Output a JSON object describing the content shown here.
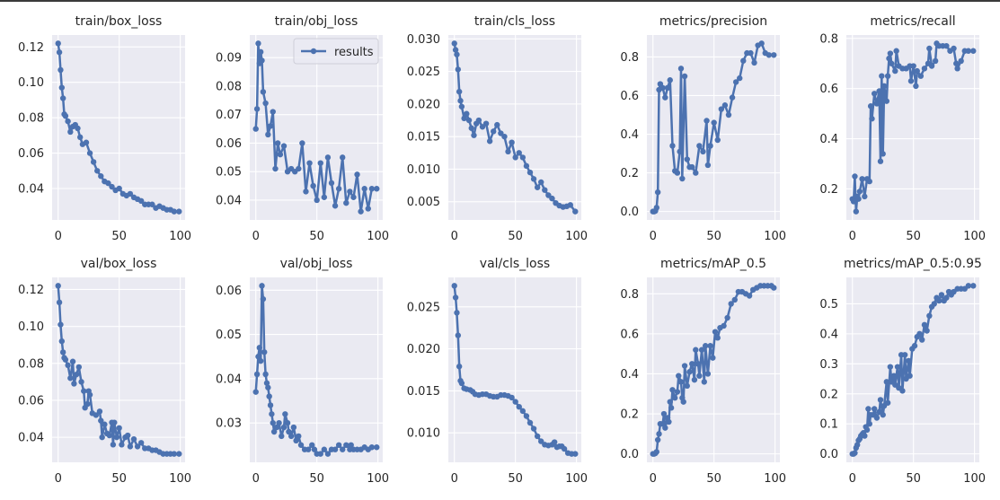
{
  "colors": {
    "background": "#eaeaf2",
    "grid": "#ffffff",
    "line": "#4c72b0",
    "text": "#262626"
  },
  "legend": {
    "label": "results",
    "placement": "top-right",
    "panel": 1
  },
  "chart_data": [
    {
      "type": "line",
      "title": "train/box_loss",
      "xticks": [
        0,
        50,
        100
      ],
      "yticks": [
        0.04,
        0.06,
        0.08,
        0.1,
        0.12
      ],
      "ytick_labels": [
        "0.04",
        "0.06",
        "0.08",
        "0.10",
        "0.12"
      ],
      "x": [
        0,
        1,
        2,
        3,
        4,
        5,
        6,
        8,
        10,
        12,
        14,
        16,
        18,
        20,
        23,
        26,
        29,
        32,
        35,
        38,
        41,
        44,
        47,
        50,
        53,
        56,
        59,
        62,
        65,
        68,
        71,
        74,
        77,
        80,
        83,
        86,
        89,
        92,
        95,
        99
      ],
      "y": [
        0.122,
        0.117,
        0.107,
        0.097,
        0.091,
        0.082,
        0.081,
        0.078,
        0.072,
        0.075,
        0.076,
        0.074,
        0.069,
        0.065,
        0.066,
        0.06,
        0.055,
        0.05,
        0.047,
        0.044,
        0.043,
        0.041,
        0.039,
        0.04,
        0.037,
        0.036,
        0.037,
        0.035,
        0.034,
        0.033,
        0.031,
        0.031,
        0.031,
        0.029,
        0.03,
        0.029,
        0.028,
        0.028,
        0.027,
        0.027
      ]
    },
    {
      "type": "line",
      "title": "train/obj_loss",
      "xticks": [
        0,
        50,
        100
      ],
      "yticks": [
        0.04,
        0.05,
        0.06,
        0.07,
        0.08,
        0.09
      ],
      "ytick_labels": [
        "0.04",
        "0.05",
        "0.06",
        "0.07",
        "0.08",
        "0.09"
      ],
      "x": [
        0,
        1,
        2,
        3,
        4,
        5,
        6,
        8,
        10,
        12,
        14,
        16,
        18,
        20,
        23,
        26,
        29,
        32,
        35,
        38,
        41,
        44,
        47,
        50,
        53,
        56,
        59,
        62,
        65,
        68,
        71,
        74,
        77,
        80,
        83,
        86,
        89,
        92,
        95,
        99
      ],
      "y": [
        0.065,
        0.072,
        0.095,
        0.088,
        0.092,
        0.089,
        0.078,
        0.074,
        0.063,
        0.066,
        0.071,
        0.051,
        0.06,
        0.056,
        0.059,
        0.05,
        0.051,
        0.05,
        0.051,
        0.06,
        0.043,
        0.053,
        0.045,
        0.04,
        0.053,
        0.041,
        0.055,
        0.046,
        0.038,
        0.044,
        0.055,
        0.039,
        0.043,
        0.041,
        0.049,
        0.036,
        0.044,
        0.037,
        0.044,
        0.044
      ]
    },
    {
      "type": "line",
      "title": "train/cls_loss",
      "xticks": [
        0,
        50,
        100
      ],
      "yticks": [
        0.005,
        0.01,
        0.015,
        0.02,
        0.025,
        0.03
      ],
      "ytick_labels": [
        "0.005",
        "0.010",
        "0.015",
        "0.020",
        "0.025",
        "0.030"
      ],
      "x": [
        0,
        1,
        2,
        3,
        4,
        5,
        6,
        8,
        10,
        12,
        14,
        16,
        18,
        20,
        23,
        26,
        29,
        32,
        35,
        38,
        41,
        44,
        47,
        50,
        53,
        56,
        59,
        62,
        65,
        68,
        71,
        74,
        77,
        80,
        83,
        86,
        89,
        92,
        95,
        99
      ],
      "y": [
        0.0293,
        0.0283,
        0.0276,
        0.0253,
        0.0219,
        0.0205,
        0.0196,
        0.0178,
        0.0185,
        0.0175,
        0.0163,
        0.0152,
        0.017,
        0.0175,
        0.0165,
        0.017,
        0.0143,
        0.0158,
        0.0168,
        0.0155,
        0.015,
        0.0127,
        0.0141,
        0.0118,
        0.0125,
        0.0118,
        0.0105,
        0.0095,
        0.0085,
        0.0072,
        0.008,
        0.0068,
        0.006,
        0.0055,
        0.0048,
        0.0044,
        0.0042,
        0.0043,
        0.0045,
        0.0035
      ]
    },
    {
      "type": "line",
      "title": "metrics/precision",
      "xticks": [
        0,
        50,
        100
      ],
      "yticks": [
        0.0,
        0.2,
        0.4,
        0.6,
        0.8
      ],
      "ytick_labels": [
        "0.0",
        "0.2",
        "0.4",
        "0.6",
        "0.8"
      ],
      "x": [
        0,
        1,
        2,
        3,
        4,
        5,
        6,
        8,
        10,
        12,
        14,
        16,
        18,
        20,
        22,
        23,
        24,
        26,
        28,
        30,
        32,
        35,
        38,
        41,
        44,
        45,
        47,
        50,
        53,
        56,
        59,
        62,
        65,
        68,
        71,
        74,
        77,
        80,
        83,
        86,
        89,
        92,
        95,
        99
      ],
      "y": [
        0,
        0,
        0.003,
        0.02,
        0.1,
        0.63,
        0.66,
        0.64,
        0.59,
        0.64,
        0.68,
        0.34,
        0.21,
        0.2,
        0.31,
        0.74,
        0.17,
        0.7,
        0.27,
        0.23,
        0.23,
        0.2,
        0.34,
        0.31,
        0.47,
        0.24,
        0.34,
        0.46,
        0.37,
        0.53,
        0.55,
        0.5,
        0.59,
        0.67,
        0.69,
        0.78,
        0.82,
        0.82,
        0.77,
        0.86,
        0.87,
        0.82,
        0.81,
        0.81
      ]
    },
    {
      "type": "line",
      "title": "metrics/recall",
      "xticks": [
        0,
        50,
        100
      ],
      "yticks": [
        0.2,
        0.4,
        0.6,
        0.8
      ],
      "ytick_labels": [
        "0.2",
        "0.4",
        "0.6",
        "0.8"
      ],
      "x": [
        0,
        1,
        2,
        3,
        4,
        5,
        6,
        8,
        10,
        12,
        14,
        15,
        16,
        18,
        20,
        22,
        23,
        24,
        25,
        26,
        28,
        29,
        30,
        31,
        32,
        35,
        36,
        38,
        41,
        44,
        47,
        48,
        50,
        52,
        53,
        56,
        59,
        62,
        63,
        65,
        68,
        69,
        71,
        74,
        77,
        80,
        83,
        85,
        86,
        89,
        92,
        95,
        99
      ],
      "y": [
        0.16,
        0.15,
        0.25,
        0.11,
        0.17,
        0.16,
        0.19,
        0.24,
        0.17,
        0.24,
        0.23,
        0.53,
        0.48,
        0.58,
        0.54,
        0.59,
        0.31,
        0.65,
        0.34,
        0.61,
        0.55,
        0.65,
        0.72,
        0.74,
        0.7,
        0.67,
        0.75,
        0.69,
        0.68,
        0.68,
        0.69,
        0.63,
        0.69,
        0.61,
        0.67,
        0.65,
        0.68,
        0.7,
        0.76,
        0.69,
        0.71,
        0.78,
        0.77,
        0.77,
        0.77,
        0.75,
        0.76,
        0.7,
        0.68,
        0.71,
        0.75,
        0.75,
        0.75
      ]
    },
    {
      "type": "line",
      "title": "val/box_loss",
      "xticks": [
        0,
        50,
        100
      ],
      "yticks": [
        0.04,
        0.06,
        0.08,
        0.1,
        0.12
      ],
      "ytick_labels": [
        "0.04",
        "0.06",
        "0.08",
        "0.10",
        "0.12"
      ],
      "x": [
        0,
        1,
        2,
        3,
        4,
        5,
        6,
        8,
        10,
        12,
        13,
        15,
        17,
        19,
        21,
        22,
        24,
        25,
        26,
        28,
        31,
        34,
        35,
        36,
        38,
        40,
        42,
        44,
        45,
        46,
        48,
        50,
        52,
        55,
        57,
        59,
        62,
        65,
        68,
        71,
        74,
        77,
        80,
        83,
        86,
        89,
        92,
        95,
        99
      ],
      "y": [
        0.122,
        0.113,
        0.101,
        0.092,
        0.086,
        0.083,
        0.082,
        0.079,
        0.072,
        0.081,
        0.069,
        0.074,
        0.078,
        0.07,
        0.065,
        0.056,
        0.058,
        0.065,
        0.063,
        0.053,
        0.052,
        0.054,
        0.049,
        0.04,
        0.047,
        0.042,
        0.041,
        0.048,
        0.036,
        0.048,
        0.04,
        0.045,
        0.036,
        0.04,
        0.041,
        0.035,
        0.039,
        0.035,
        0.037,
        0.034,
        0.034,
        0.033,
        0.033,
        0.032,
        0.031,
        0.031,
        0.031,
        0.031,
        0.031
      ]
    },
    {
      "type": "line",
      "title": "val/obj_loss",
      "xticks": [
        0,
        50,
        100
      ],
      "yticks": [
        0.03,
        0.04,
        0.05,
        0.06
      ],
      "ytick_labels": [
        "0.03",
        "0.04",
        "0.05",
        "0.06"
      ],
      "x": [
        0,
        1,
        2,
        3,
        4,
        5,
        6,
        7,
        8,
        9,
        10,
        11,
        12,
        13,
        14,
        15,
        17,
        19,
        21,
        23,
        24,
        26,
        27,
        29,
        31,
        33,
        35,
        37,
        40,
        43,
        46,
        48,
        50,
        53,
        56,
        59,
        62,
        65,
        68,
        71,
        74,
        77,
        78,
        80,
        83,
        86,
        89,
        92,
        95,
        99
      ],
      "y": [
        0.037,
        0.041,
        0.045,
        0.047,
        0.044,
        0.061,
        0.058,
        0.046,
        0.041,
        0.039,
        0.038,
        0.036,
        0.034,
        0.032,
        0.03,
        0.028,
        0.029,
        0.03,
        0.027,
        0.029,
        0.032,
        0.03,
        0.028,
        0.027,
        0.029,
        0.026,
        0.027,
        0.025,
        0.024,
        0.024,
        0.025,
        0.024,
        0.023,
        0.023,
        0.024,
        0.023,
        0.024,
        0.024,
        0.025,
        0.024,
        0.025,
        0.024,
        0.025,
        0.024,
        0.024,
        0.024,
        0.0245,
        0.024,
        0.0245,
        0.0245
      ]
    },
    {
      "type": "line",
      "title": "val/cls_loss",
      "xticks": [
        0,
        50,
        100
      ],
      "yticks": [
        0.01,
        0.015,
        0.02,
        0.025
      ],
      "ytick_labels": [
        "0.010",
        "0.015",
        "0.020",
        "0.025"
      ],
      "x": [
        0,
        1,
        2,
        3,
        4,
        5,
        6,
        8,
        10,
        13,
        15,
        17,
        20,
        23,
        26,
        29,
        32,
        35,
        38,
        41,
        44,
        47,
        50,
        53,
        56,
        59,
        62,
        65,
        68,
        71,
        74,
        77,
        80,
        82,
        84,
        86,
        88,
        90,
        93,
        96,
        99
      ],
      "y": [
        0.0275,
        0.0261,
        0.0243,
        0.0216,
        0.0179,
        0.0162,
        0.0159,
        0.0153,
        0.0152,
        0.0151,
        0.0149,
        0.0146,
        0.0145,
        0.0146,
        0.0146,
        0.0144,
        0.0143,
        0.0143,
        0.0145,
        0.0145,
        0.0144,
        0.0142,
        0.0137,
        0.0131,
        0.0126,
        0.012,
        0.0112,
        0.0105,
        0.0096,
        0.009,
        0.0086,
        0.0085,
        0.0086,
        0.0089,
        0.0083,
        0.0084,
        0.0084,
        0.0081,
        0.0076,
        0.0075,
        0.0075
      ]
    },
    {
      "type": "line",
      "title": "metrics/mAP_0.5",
      "xticks": [
        0,
        50,
        100
      ],
      "yticks": [
        0.0,
        0.2,
        0.4,
        0.6,
        0.8
      ],
      "ytick_labels": [
        "0.0",
        "0.2",
        "0.4",
        "0.6",
        "0.8"
      ],
      "x": [
        0,
        1,
        2,
        3,
        4,
        5,
        6,
        8,
        9,
        10,
        12,
        13,
        14,
        15,
        16,
        18,
        20,
        21,
        23,
        24,
        25,
        26,
        28,
        30,
        32,
        34,
        35,
        37,
        38,
        40,
        42,
        43,
        45,
        47,
        49,
        51,
        53,
        55,
        58,
        61,
        64,
        67,
        70,
        73,
        76,
        79,
        82,
        85,
        88,
        91,
        94,
        97,
        99
      ],
      "y": [
        0,
        0,
        0.003,
        0.01,
        0.07,
        0.1,
        0.15,
        0.15,
        0.2,
        0.13,
        0.18,
        0.16,
        0.26,
        0.23,
        0.32,
        0.28,
        0.31,
        0.39,
        0.36,
        0.28,
        0.26,
        0.44,
        0.34,
        0.41,
        0.45,
        0.37,
        0.52,
        0.45,
        0.39,
        0.52,
        0.36,
        0.54,
        0.4,
        0.54,
        0.48,
        0.61,
        0.58,
        0.63,
        0.64,
        0.68,
        0.75,
        0.77,
        0.81,
        0.81,
        0.8,
        0.79,
        0.82,
        0.83,
        0.84,
        0.84,
        0.84,
        0.84,
        0.83
      ]
    },
    {
      "type": "line",
      "title": "metrics/mAP_0.5:0.95",
      "xticks": [
        0,
        50,
        100
      ],
      "yticks": [
        0.0,
        0.1,
        0.2,
        0.3,
        0.4,
        0.5
      ],
      "ytick_labels": [
        "0.0",
        "0.1",
        "0.2",
        "0.3",
        "0.4",
        "0.5"
      ],
      "x": [
        0,
        1,
        2,
        3,
        4,
        5,
        6,
        7,
        8,
        9,
        10,
        11,
        12,
        13,
        14,
        15,
        17,
        18,
        20,
        22,
        23,
        25,
        26,
        28,
        29,
        31,
        32,
        34,
        35,
        37,
        38,
        40,
        41,
        43,
        44,
        46,
        47,
        49,
        51,
        53,
        55,
        57,
        59,
        61,
        63,
        65,
        67,
        69,
        71,
        73,
        75,
        77,
        79,
        81,
        83,
        86,
        89,
        92,
        95,
        99
      ],
      "y": [
        0,
        0,
        0.003,
        0.02,
        0.03,
        0.045,
        0.05,
        0.06,
        0.065,
        0.07,
        0.06,
        0.09,
        0.08,
        0.15,
        0.1,
        0.13,
        0.13,
        0.15,
        0.12,
        0.14,
        0.18,
        0.13,
        0.16,
        0.24,
        0.17,
        0.29,
        0.24,
        0.26,
        0.23,
        0.29,
        0.22,
        0.33,
        0.21,
        0.33,
        0.25,
        0.31,
        0.26,
        0.35,
        0.36,
        0.39,
        0.4,
        0.38,
        0.43,
        0.41,
        0.46,
        0.49,
        0.5,
        0.52,
        0.51,
        0.53,
        0.51,
        0.52,
        0.54,
        0.53,
        0.54,
        0.55,
        0.55,
        0.55,
        0.56,
        0.56
      ]
    }
  ]
}
